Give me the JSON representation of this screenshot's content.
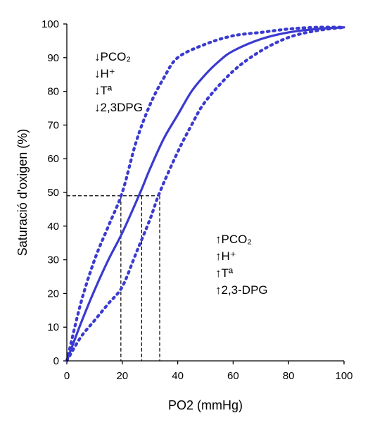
{
  "chart_data": {
    "type": "line",
    "xlabel": "PO2 (mmHg)",
    "ylabel": "Saturació d'oxigen (%)",
    "xlim": [
      0,
      100
    ],
    "ylim": [
      0,
      100
    ],
    "xticks": [
      0,
      20,
      40,
      60,
      80,
      100
    ],
    "yticks": [
      0,
      10,
      20,
      30,
      40,
      50,
      60,
      70,
      80,
      90,
      100
    ],
    "grid": false,
    "colors": {
      "curve": "#3a3ad0",
      "reference": "#000000"
    },
    "series": [
      {
        "style": "solid",
        "x": [
          0,
          5,
          10,
          15,
          20,
          26.5,
          30,
          35,
          40,
          45,
          50,
          55,
          60,
          70,
          80,
          90,
          100
        ],
        "y": [
          0,
          11,
          21,
          30,
          38,
          50,
          57,
          66,
          73,
          80,
          85,
          89,
          92,
          95.5,
          97.5,
          98.5,
          99
        ]
      },
      {
        "style": "dotted",
        "x": [
          0,
          5,
          10,
          15,
          20,
          25,
          30,
          35,
          40,
          50,
          60,
          70,
          80,
          90,
          100
        ],
        "y": [
          0,
          17,
          30,
          40,
          50,
          65,
          76,
          84,
          90,
          94,
          96.5,
          97.5,
          98.5,
          99,
          99
        ]
      },
      {
        "style": "dotted",
        "x": [
          0,
          5,
          10,
          15,
          20,
          25,
          30,
          33.5,
          40,
          45,
          50,
          60,
          70,
          80,
          90,
          100
        ],
        "y": [
          0,
          7,
          12,
          17,
          22,
          32,
          42,
          50,
          62,
          70,
          77,
          86,
          92,
          96,
          98,
          99
        ]
      }
    ],
    "reference_lines": {
      "y": 49,
      "x": [
        19.5,
        27,
        33.5
      ]
    },
    "annotations": [
      {
        "position": "top-left",
        "lines": [
          "↓PCO₂",
          "↓H⁺",
          "↓Tª",
          "↓2,3DPG"
        ]
      },
      {
        "position": "middle-right",
        "lines": [
          "↑PCO₂",
          "↑H⁺",
          "↑Tª",
          "↑2,3-DPG"
        ]
      }
    ]
  }
}
